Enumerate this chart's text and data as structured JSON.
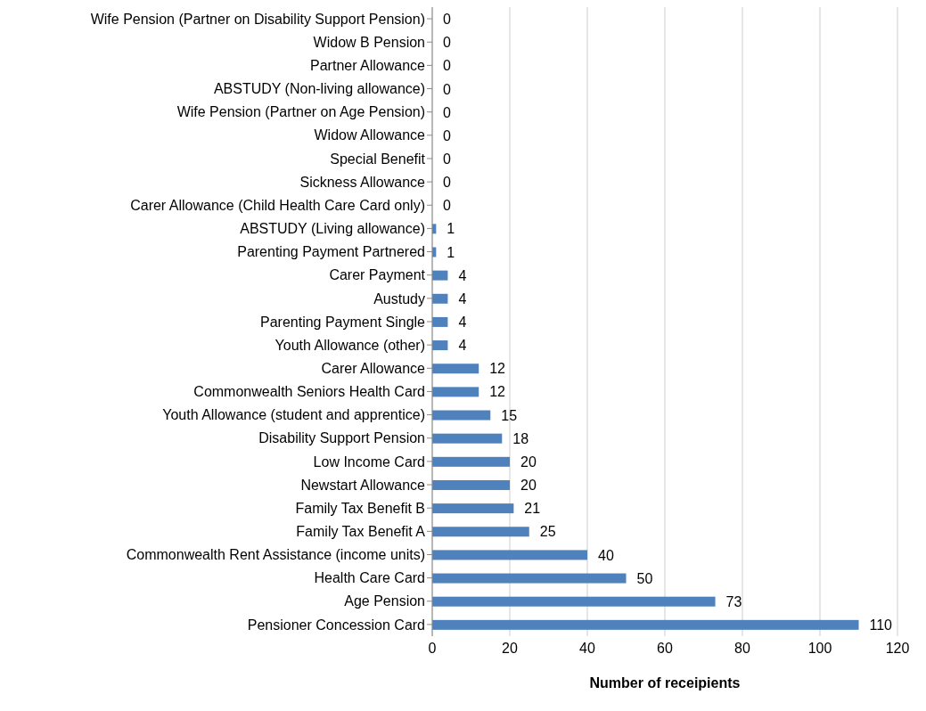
{
  "chart_data": {
    "type": "bar",
    "orientation": "horizontal",
    "xlabel": "Number of receipients",
    "categories": [
      "Wife Pension (Partner on Disability Support Pension)",
      "Widow B Pension",
      "Partner Allowance",
      "ABSTUDY (Non-living allowance)",
      "Wife Pension (Partner on Age Pension)",
      "Widow Allowance",
      "Special Benefit",
      "Sickness Allowance",
      "Carer Allowance (Child Health Care Card only)",
      "ABSTUDY (Living allowance)",
      "Parenting Payment Partnered",
      "Carer Payment",
      "Austudy",
      "Parenting Payment Single",
      "Youth Allowance (other)",
      "Carer Allowance",
      "Commonwealth Seniors Health Card",
      "Youth Allowance (student and apprentice)",
      "Disability Support Pension",
      "Low Income Card",
      "Newstart Allowance",
      "Family Tax Benefit B",
      "Family Tax Benefit A",
      "Commonwealth Rent Assistance (income units)",
      "Health Care Card",
      "Age Pension",
      "Pensioner Concession Card"
    ],
    "values": [
      0,
      0,
      0,
      0,
      0,
      0,
      0,
      0,
      0,
      1,
      1,
      4,
      4,
      4,
      4,
      12,
      12,
      15,
      18,
      20,
      20,
      21,
      25,
      40,
      50,
      73,
      110
    ],
    "color": "#4f81bd",
    "xlim": [
      0,
      120
    ],
    "xticks": [
      0,
      20,
      40,
      60,
      80,
      100,
      120
    ],
    "grid": "x",
    "data_labels": true
  }
}
